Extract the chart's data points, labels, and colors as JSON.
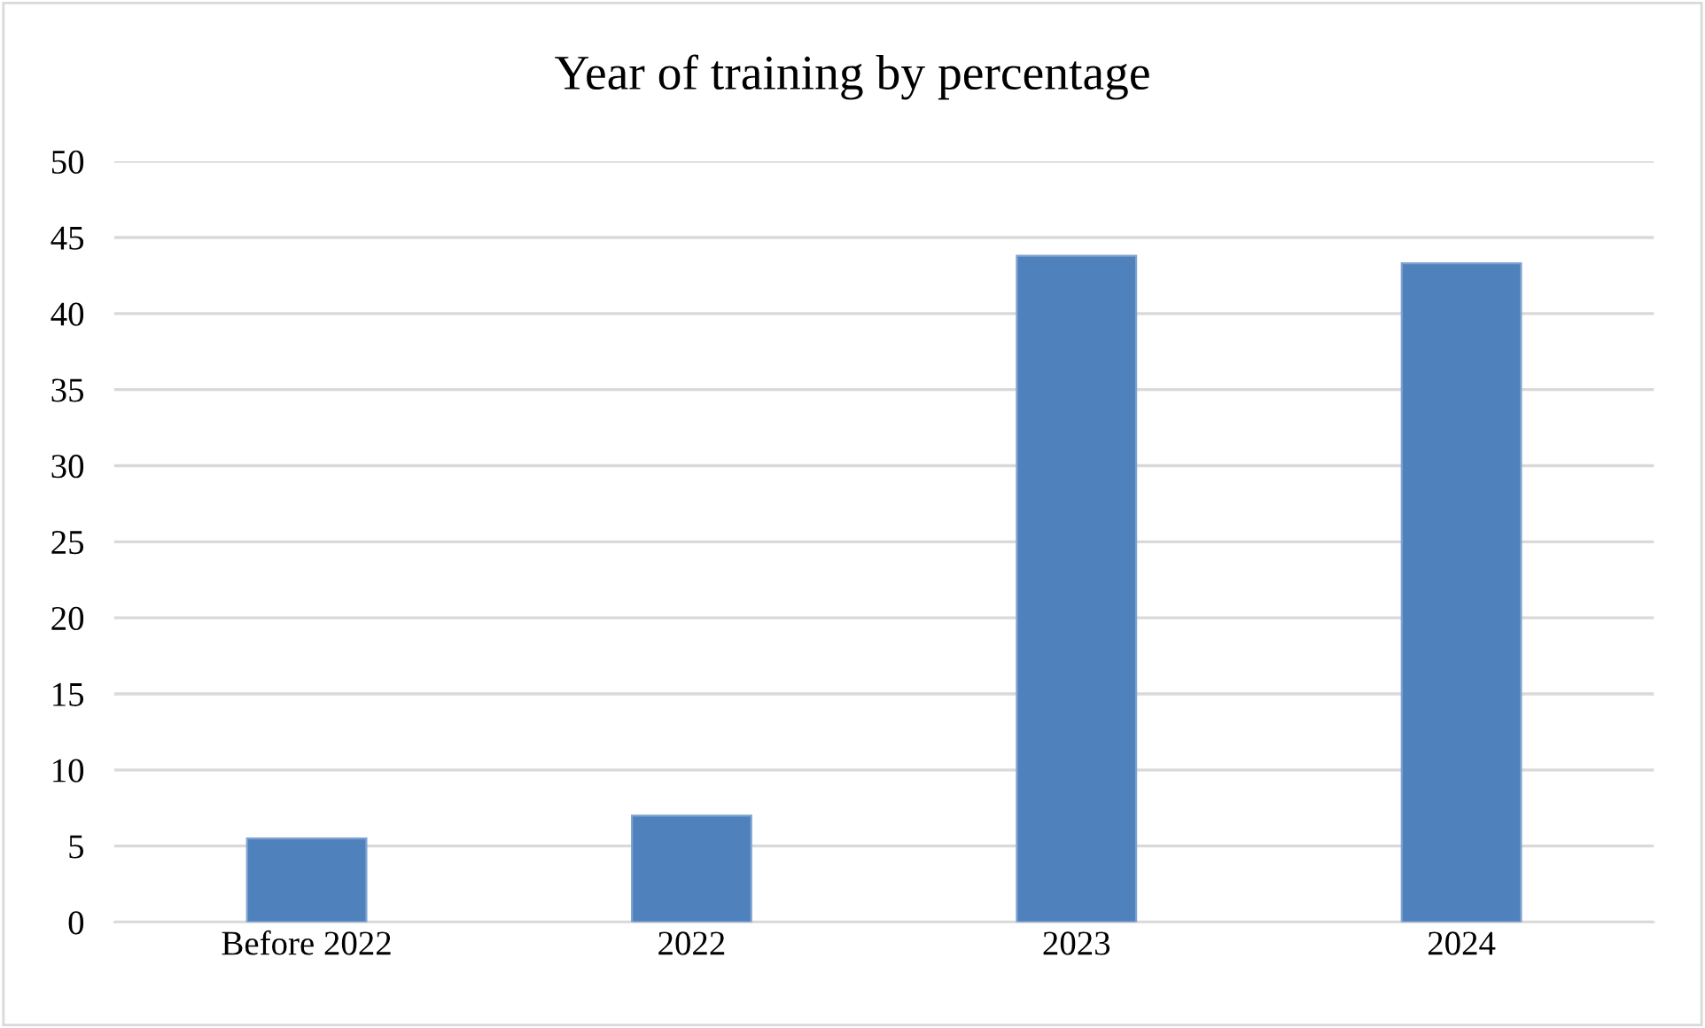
{
  "chart_data": {
    "type": "bar",
    "title": "Year of training by percentage",
    "categories": [
      "Before 2022",
      "2022",
      "2023",
      "2024"
    ],
    "values": [
      5.5,
      7.0,
      43.8,
      43.3
    ],
    "color": "#4f81bd",
    "ylim": [
      0,
      50
    ],
    "yticks": [
      0,
      5,
      10,
      15,
      20,
      25,
      30,
      35,
      40,
      45,
      50
    ],
    "grid": "y"
  }
}
